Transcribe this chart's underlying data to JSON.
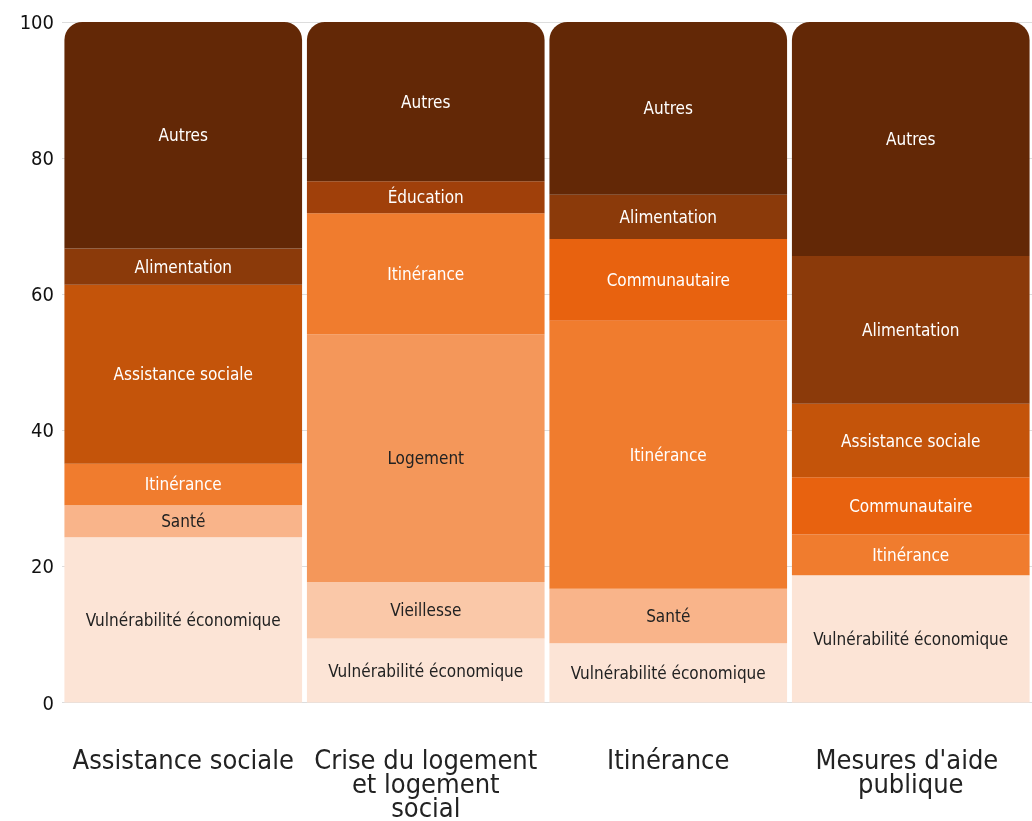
{
  "chart_data": {
    "type": "bar",
    "stacked": true,
    "legend": false,
    "grid": "y",
    "ylim": [
      0,
      100
    ],
    "yticks": [
      0,
      20,
      40,
      60,
      80,
      100
    ],
    "categories": [
      "Assistance sociale",
      "Crise du logement et logement social",
      "Itinérance",
      "Mesures d'aide publique"
    ],
    "series": [
      {
        "name": "Vulnérabilité économique",
        "color": "#fce4d6",
        "values": [
          24.3,
          9.4,
          8.7,
          18.7
        ]
      },
      {
        "name": "Santé",
        "color": "#f9b48a",
        "values": [
          4.7,
          null,
          8.0,
          null
        ]
      },
      {
        "name": "Vieillesse",
        "color": "#fac8a8",
        "values": [
          null,
          8.3,
          null,
          null
        ]
      },
      {
        "name": "Logement",
        "color": "#f4975a",
        "values": [
          null,
          36.4,
          null,
          null
        ]
      },
      {
        "name": "Itinérance",
        "color": "#f07c2e",
        "values": [
          6.1,
          17.8,
          39.4,
          6.0
        ]
      },
      {
        "name": "Communautaire",
        "color": "#e8620f",
        "values": [
          null,
          null,
          12.0,
          8.4
        ]
      },
      {
        "name": "Assistance sociale",
        "color": "#c4540a",
        "values": [
          26.3,
          null,
          null,
          10.8
        ]
      },
      {
        "name": "Éducation",
        "color": "#a0400a",
        "values": [
          null,
          4.7,
          null,
          null
        ]
      },
      {
        "name": "Alimentation",
        "color": "#8b3a0a",
        "values": [
          5.3,
          null,
          6.5,
          21.7
        ]
      },
      {
        "name": "Autres",
        "color": "#632806",
        "values": [
          33.3,
          23.4,
          25.4,
          34.4
        ]
      }
    ]
  }
}
